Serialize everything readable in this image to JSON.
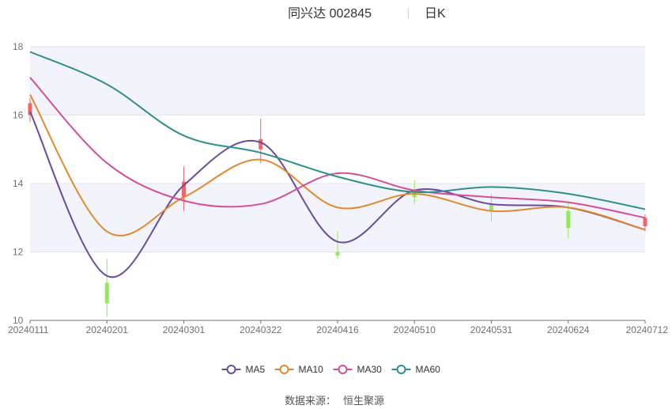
{
  "header": {
    "title": "同兴达 002845",
    "period": "日K"
  },
  "footer": {
    "source_label": "数据来源：",
    "source_name": "恒生聚源"
  },
  "colors": {
    "up": "#ee6666",
    "down": "#95e85a",
    "MA5": "#6a4aa0",
    "MA10": "#e08a30",
    "MA30": "#d44e9a",
    "MA60": "#2f8f8c",
    "band": "#f3f4fb",
    "grid": "#e0e6f1"
  },
  "chart_data": {
    "type": "candlestick",
    "title": "同兴达 002845",
    "subtitle": "日K",
    "ylim": [
      10,
      18
    ],
    "y_ticks": [
      10,
      12,
      14,
      16,
      18
    ],
    "x_ticks": [
      "20240111",
      "20240201",
      "20240301",
      "20240322",
      "20240416",
      "20240510",
      "20240531",
      "20240624",
      "20240712"
    ],
    "grid": true,
    "legend_position": "bottom",
    "candles": [
      {
        "x": "20240111",
        "open": 16.0,
        "close": 16.35,
        "high": 16.5,
        "low": 15.8
      },
      {
        "x": "20240201",
        "open": 11.1,
        "close": 10.5,
        "high": 11.8,
        "low": 10.1
      },
      {
        "x": "20240301",
        "open": 13.6,
        "close": 14.05,
        "high": 14.5,
        "low": 13.2
      },
      {
        "x": "20240322",
        "open": 15.0,
        "close": 15.3,
        "high": 15.9,
        "low": 14.6
      },
      {
        "x": "20240416",
        "open": 12.0,
        "close": 11.9,
        "high": 12.6,
        "low": 11.8
      },
      {
        "x": "20240510",
        "open": 13.8,
        "close": 13.6,
        "high": 14.1,
        "low": 13.4
      },
      {
        "x": "20240531",
        "open": 13.4,
        "close": 13.2,
        "high": 13.7,
        "low": 12.9
      },
      {
        "x": "20240624",
        "open": 13.2,
        "close": 12.7,
        "high": 13.5,
        "low": 12.4
      },
      {
        "x": "20240712",
        "open": 12.75,
        "close": 13.0,
        "high": 13.1,
        "low": 12.6
      }
    ],
    "series": [
      {
        "name": "MA5",
        "values": [
          16.1,
          11.3,
          13.95,
          15.2,
          12.3,
          13.8,
          13.4,
          13.3,
          12.65
        ]
      },
      {
        "name": "MA10",
        "values": [
          16.6,
          12.6,
          13.6,
          14.7,
          13.3,
          13.7,
          13.2,
          13.3,
          12.65
        ]
      },
      {
        "name": "MA30",
        "values": [
          17.1,
          14.6,
          13.5,
          13.4,
          14.3,
          13.8,
          13.6,
          13.45,
          13.0
        ]
      },
      {
        "name": "MA60",
        "values": [
          17.85,
          16.9,
          15.4,
          14.9,
          14.2,
          13.75,
          13.9,
          13.7,
          13.25
        ]
      }
    ]
  }
}
